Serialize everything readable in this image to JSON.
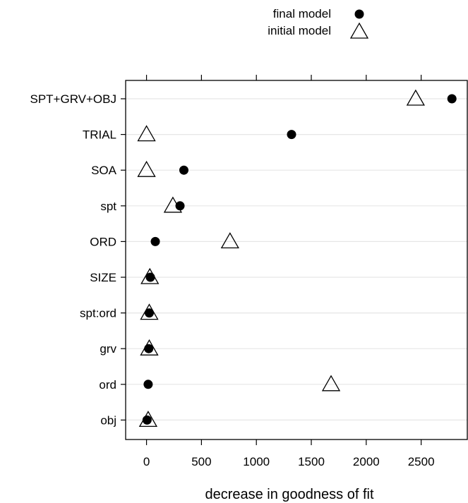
{
  "chart_data": {
    "type": "scatter",
    "title": "",
    "xlabel": "decrease in goodness of fit",
    "ylabel": "",
    "categories": [
      "SPT+GRV+OBJ",
      "TRIAL",
      "SOA",
      "spt",
      "ORD",
      "SIZE",
      "spt:ord",
      "grv",
      "ord",
      "obj"
    ],
    "xlim": [
      -190,
      2920
    ],
    "xticks": [
      0,
      500,
      1000,
      1500,
      2000,
      2500
    ],
    "xtick_labels": [
      "0",
      "500",
      "1000",
      "1500",
      "2000",
      "2500"
    ],
    "grid": "horizontal",
    "legend_position": "top",
    "series": [
      {
        "name": "final model",
        "marker": "filled-circle",
        "color": "#000000",
        "values": [
          2780,
          1320,
          340,
          305,
          80,
          35,
          25,
          20,
          15,
          5
        ]
      },
      {
        "name": "initial model",
        "marker": "open-triangle",
        "color": "#000000",
        "values": [
          2450,
          0,
          0,
          240,
          760,
          30,
          25,
          25,
          1680,
          15
        ]
      }
    ]
  }
}
